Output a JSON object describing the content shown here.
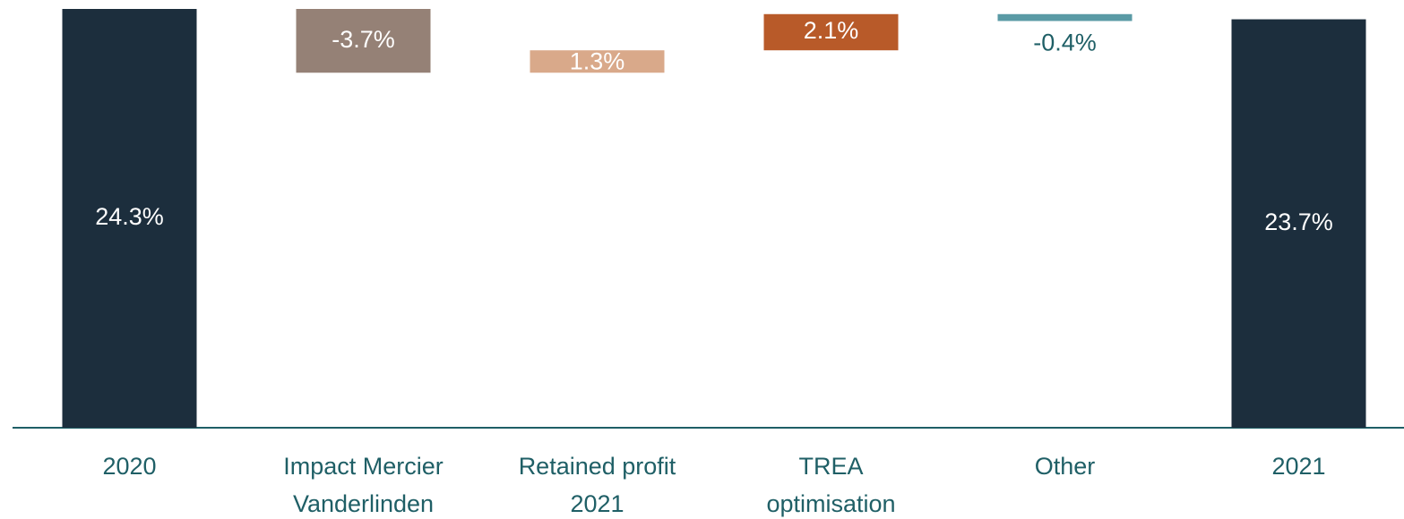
{
  "chart_data": {
    "type": "waterfall",
    "categories": [
      "2020",
      "Impact Mercier Vanderlinden",
      "Retained profit 2021",
      "TREA optimisation",
      "Other",
      "2021"
    ],
    "values": [
      24.3,
      -3.7,
      1.3,
      2.1,
      -0.4,
      23.7
    ],
    "value_labels": [
      "24.3%",
      "-3.7%",
      "1.3%",
      "2.1%",
      "-0.4%",
      "23.7%"
    ],
    "measure": [
      "total",
      "relative",
      "relative",
      "relative",
      "relative",
      "total"
    ],
    "colors": [
      "#1c2e3d",
      "#958176",
      "#d9a98a",
      "#b85a29",
      "#5a9aa5",
      "#1c2e3d"
    ]
  }
}
